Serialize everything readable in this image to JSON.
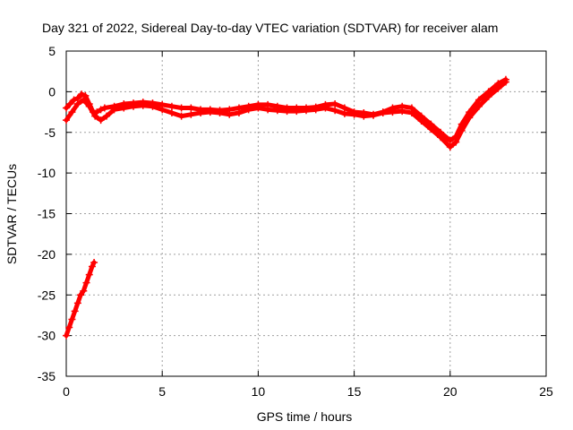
{
  "chart_data": {
    "type": "scatter",
    "title": "Day 321 of 2022, Sidereal Day-to-day VTEC variation (SDTVAR) for receiver alam",
    "xlabel": "GPS time / hours",
    "ylabel": "SDTVAR / TECUs",
    "xlim": [
      0,
      25
    ],
    "ylim": [
      -35,
      5
    ],
    "xticks": [
      0,
      5,
      10,
      15,
      20,
      25
    ],
    "yticks": [
      5,
      0,
      -5,
      -10,
      -15,
      -20,
      -25,
      -30,
      -35
    ],
    "grid": true,
    "marker": "+",
    "series": [
      {
        "name": "SDTVAR",
        "color": "#ff0000",
        "segments": [
          [
            [
              0.0,
              -30.0
            ],
            [
              0.15,
              -29.0
            ],
            [
              0.3,
              -28.0
            ],
            [
              0.45,
              -27.0
            ],
            [
              0.6,
              -26.0
            ],
            [
              0.75,
              -25.0
            ],
            [
              0.9,
              -24.5
            ],
            [
              1.05,
              -23.5
            ],
            [
              1.2,
              -22.5
            ],
            [
              1.35,
              -21.5
            ],
            [
              1.45,
              -21.0
            ]
          ],
          [
            [
              0.0,
              -2.0
            ],
            [
              0.2,
              -1.5
            ],
            [
              0.4,
              -1.0
            ],
            [
              0.6,
              -0.8
            ],
            [
              0.8,
              -0.3
            ],
            [
              1.0,
              -0.5
            ],
            [
              1.2,
              -1.5
            ],
            [
              1.4,
              -2.5
            ],
            [
              1.6,
              -2.5
            ],
            [
              1.8,
              -2.2
            ],
            [
              2.0,
              -2.0
            ],
            [
              2.5,
              -1.8
            ],
            [
              3.0,
              -1.5
            ],
            [
              3.5,
              -1.4
            ],
            [
              4.0,
              -1.3
            ],
            [
              4.5,
              -1.4
            ],
            [
              5.0,
              -1.6
            ],
            [
              5.5,
              -1.8
            ],
            [
              6.0,
              -2.0
            ],
            [
              6.5,
              -2.0
            ],
            [
              7.0,
              -2.2
            ],
            [
              7.5,
              -2.2
            ],
            [
              8.0,
              -2.3
            ],
            [
              8.5,
              -2.2
            ],
            [
              9.0,
              -2.0
            ],
            [
              9.5,
              -1.8
            ],
            [
              10.0,
              -1.6
            ],
            [
              10.5,
              -1.6
            ],
            [
              11.0,
              -1.8
            ],
            [
              11.5,
              -2.0
            ],
            [
              12.0,
              -2.0
            ],
            [
              12.5,
              -2.0
            ],
            [
              13.0,
              -1.9
            ],
            [
              13.5,
              -1.6
            ],
            [
              14.0,
              -1.5
            ],
            [
              14.5,
              -2.0
            ],
            [
              15.0,
              -2.5
            ],
            [
              15.5,
              -2.6
            ],
            [
              16.0,
              -2.8
            ],
            [
              16.5,
              -2.5
            ],
            [
              17.0,
              -2.0
            ],
            [
              17.5,
              -1.8
            ],
            [
              18.0,
              -2.0
            ],
            [
              18.5,
              -3.0
            ],
            [
              19.0,
              -4.0
            ],
            [
              19.5,
              -5.0
            ],
            [
              20.0,
              -6.0
            ],
            [
              20.3,
              -5.5
            ],
            [
              20.6,
              -4.0
            ],
            [
              21.0,
              -2.5
            ],
            [
              21.5,
              -1.0
            ],
            [
              22.0,
              0.0
            ],
            [
              22.5,
              1.0
            ],
            [
              22.9,
              1.5
            ]
          ],
          [
            [
              0.0,
              -3.5
            ],
            [
              0.3,
              -2.5
            ],
            [
              0.6,
              -1.5
            ],
            [
              0.9,
              -1.0
            ],
            [
              1.2,
              -1.8
            ],
            [
              1.5,
              -3.0
            ],
            [
              1.8,
              -3.5
            ],
            [
              2.1,
              -3.0
            ],
            [
              2.5,
              -2.2
            ],
            [
              3.0,
              -2.0
            ],
            [
              3.5,
              -1.8
            ],
            [
              4.0,
              -1.7
            ],
            [
              4.5,
              -1.8
            ],
            [
              5.0,
              -2.2
            ],
            [
              5.5,
              -2.6
            ],
            [
              6.0,
              -3.0
            ],
            [
              6.5,
              -2.8
            ],
            [
              7.0,
              -2.6
            ],
            [
              7.5,
              -2.5
            ],
            [
              8.0,
              -2.6
            ],
            [
              8.5,
              -2.8
            ],
            [
              9.0,
              -2.6
            ],
            [
              9.5,
              -2.2
            ],
            [
              10.0,
              -2.0
            ],
            [
              10.5,
              -2.2
            ],
            [
              11.0,
              -2.3
            ],
            [
              11.5,
              -2.4
            ],
            [
              12.0,
              -2.4
            ],
            [
              12.5,
              -2.3
            ],
            [
              13.0,
              -2.2
            ],
            [
              13.5,
              -2.0
            ],
            [
              14.0,
              -2.3
            ],
            [
              14.5,
              -2.7
            ],
            [
              15.0,
              -2.8
            ],
            [
              15.5,
              -3.0
            ],
            [
              16.0,
              -2.9
            ],
            [
              16.5,
              -2.6
            ],
            [
              17.0,
              -2.5
            ],
            [
              17.5,
              -2.4
            ],
            [
              18.0,
              -2.6
            ],
            [
              18.5,
              -3.6
            ],
            [
              19.0,
              -4.6
            ],
            [
              19.5,
              -5.6
            ],
            [
              20.0,
              -6.8
            ],
            [
              20.3,
              -6.2
            ],
            [
              20.6,
              -4.8
            ],
            [
              21.0,
              -3.2
            ],
            [
              21.5,
              -1.8
            ],
            [
              22.0,
              -0.6
            ],
            [
              22.5,
              0.4
            ],
            [
              22.9,
              1.2
            ]
          ]
        ]
      }
    ]
  }
}
